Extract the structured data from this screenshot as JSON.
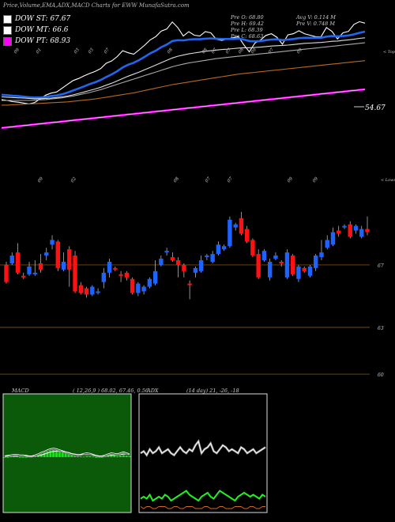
{
  "header": {
    "title": "Price,Volume,EMA,ADX,MACD Charts for EWW MunafaSutra.com"
  },
  "legend": [
    {
      "label": "DOW ST: 67.67",
      "color": "#ffffff"
    },
    {
      "label": "DOW MT: 66.6",
      "color": "#ffffff"
    },
    {
      "label": "DOW PT: 68.93",
      "color": "#ff00ff"
    }
  ],
  "quote": {
    "pre_o": "Pre  O: 68.80",
    "pre_h": "Pre  H: 69.42",
    "pre_l": "Pre  L: 68.39",
    "pre_c": "Pre  C: 68.63",
    "avg_v": "Avg V: 0.114  M",
    "pre_v": "Pre  V: 0.748 M"
  },
  "chart_data": [
    {
      "type": "line",
      "name": "ema-panel",
      "top_tag": "< Tops",
      "top_markers": [
        "09",
        "01",
        "03",
        "03",
        "07",
        "08",
        "08",
        "07",
        "07",
        "08",
        "09",
        "07",
        "09"
      ],
      "lows_tag": "< Lows",
      "low_markers": [
        "09",
        "02",
        "08",
        "07",
        "07",
        "09",
        "09"
      ],
      "last_label": "54.67",
      "series": [
        {
          "color": "#ffffff",
          "values": [
            34.9,
            34.6,
            34.2,
            34.0,
            33.7,
            33.4,
            33.9,
            35.1,
            36.4,
            37.1,
            37.5,
            38.8,
            40.1,
            41.4,
            42.1,
            43.0,
            43.8,
            44.5,
            45.5,
            47.3,
            48.1,
            49.6,
            51.6,
            50.9,
            50.4,
            51.9,
            53.5,
            55.3,
            56.4,
            58.3,
            59.0,
            61.4,
            59.5,
            56.6,
            58.1,
            56.9,
            56.6,
            58.1,
            57.7,
            55.5,
            55.1,
            55.6,
            56.0,
            56.4,
            53.6,
            51.2,
            54.2,
            55.2,
            56.8,
            57.4,
            56.2,
            53.8,
            57.0,
            57.4,
            58.4,
            57.4,
            56.9,
            56.4,
            56.3,
            59.5,
            58.2,
            55.6,
            57.7,
            58.2,
            60.6,
            61.5,
            61.0
          ]
        },
        {
          "color": "#2266ee",
          "values": [
            36.5,
            36.4,
            36.2,
            36.1,
            35.9,
            35.7,
            35.6,
            35.6,
            35.8,
            36.1,
            36.3,
            36.7,
            37.3,
            38.0,
            38.7,
            39.4,
            40.2,
            40.8,
            41.6,
            42.6,
            43.5,
            44.6,
            45.9,
            46.8,
            47.5,
            48.4,
            49.5,
            50.7,
            51.6,
            52.8,
            53.7,
            54.9,
            55.2,
            55.1,
            55.4,
            55.5,
            55.5,
            55.7,
            55.8,
            55.7,
            55.6,
            55.6,
            55.6,
            55.7,
            55.4,
            54.9,
            54.8,
            54.9,
            55.2,
            55.4,
            55.5,
            55.2,
            55.4,
            55.6,
            55.9,
            56.0,
            56.0,
            56.0,
            56.0,
            56.4,
            56.6,
            56.5,
            56.6,
            56.8,
            57.2,
            57.7,
            58.1
          ]
        },
        {
          "color": "#dddddd",
          "values": [
            35.8,
            35.7,
            35.6,
            35.5,
            35.4,
            35.3,
            35.2,
            35.2,
            35.3,
            35.4,
            35.6,
            35.8,
            36.1,
            36.5,
            37.0,
            37.5,
            38.0,
            38.5,
            39.1,
            39.8,
            40.5,
            41.3,
            42.1,
            42.9,
            43.6,
            44.3,
            45.1,
            45.9,
            46.7,
            47.5,
            48.3,
            49.1,
            49.7,
            50.1,
            50.5,
            50.8,
            51.1,
            51.4,
            51.6,
            51.8,
            52.0,
            52.1,
            52.3,
            52.5,
            52.6,
            52.6,
            52.7,
            52.8,
            53.0,
            53.2,
            53.3,
            53.4,
            53.5,
            53.7,
            53.9,
            54.1,
            54.2,
            54.3,
            54.4,
            54.6,
            54.8,
            54.9,
            55.1,
            55.3,
            55.5,
            55.8,
            56.0
          ]
        },
        {
          "color": "#aaaaaa",
          "values": [
            34.6,
            34.6,
            34.6,
            34.6,
            34.6,
            34.6,
            34.7,
            34.8,
            34.9,
            35.1,
            35.3,
            35.5,
            35.8,
            36.1,
            36.5,
            36.9,
            37.3,
            37.8,
            38.3,
            38.9,
            39.5,
            40.1,
            40.7,
            41.3,
            41.9,
            42.5,
            43.1,
            43.7,
            44.3,
            44.9,
            45.5,
            46.1,
            46.6,
            47.0,
            47.4,
            47.7,
            48.0,
            48.3,
            48.6,
            48.9,
            49.1,
            49.3,
            49.5,
            49.7,
            49.9,
            50.1,
            50.3,
            50.5,
            50.7,
            50.9,
            51.1,
            51.3,
            51.5,
            51.7,
            51.9,
            52.1,
            52.3,
            52.5,
            52.7,
            52.9,
            53.1,
            53.3,
            53.5,
            53.7,
            53.9,
            54.1,
            54.3
          ]
        },
        {
          "color": "#b86a1e",
          "values": [
            33.0,
            33.0,
            33.1,
            33.2,
            33.3,
            33.4,
            33.5,
            33.6,
            33.7,
            33.8,
            33.9,
            34.0,
            34.1,
            34.3,
            34.5,
            34.7,
            34.9,
            35.1,
            35.4,
            35.7,
            36.0,
            36.3,
            36.6,
            36.9,
            37.2,
            37.6,
            38.0,
            38.4,
            38.8,
            39.2,
            39.6,
            40.0,
            40.3,
            40.6,
            40.9,
            41.2,
            41.5,
            41.8,
            42.1,
            42.4,
            42.7,
            43.0,
            43.3,
            43.6,
            43.8,
            44.0,
            44.2,
            44.4,
            44.6,
            44.8,
            45.0,
            45.2,
            45.4,
            45.6,
            45.8,
            46.0,
            46.2,
            46.4,
            46.6,
            46.8,
            47.0,
            47.2,
            47.4,
            47.6,
            47.8,
            48.0,
            48.2
          ]
        },
        {
          "color": "#ff00ff",
          "values": [
            25.2,
            25.4,
            25.6,
            25.8,
            26.0,
            26.2,
            26.4,
            26.6,
            26.8,
            27.0,
            27.2,
            27.4,
            27.6,
            27.8,
            28.0,
            28.2,
            28.4,
            28.6,
            28.8,
            29.0,
            29.2,
            29.4,
            29.6,
            29.8,
            30.0,
            30.2,
            30.4,
            30.6,
            30.8,
            31.0,
            31.2,
            31.4,
            31.6,
            31.8,
            32.0,
            32.2,
            32.4,
            32.6,
            32.8,
            33.0,
            33.2,
            33.4,
            33.6,
            33.8,
            34.0,
            34.2,
            34.4,
            34.6,
            34.8,
            35.0,
            35.2,
            35.4,
            35.6,
            35.8,
            36.0,
            36.2,
            36.4,
            36.6,
            36.8,
            37.0,
            37.2,
            37.4,
            37.6,
            37.8,
            38.0,
            38.2,
            38.4
          ]
        }
      ]
    },
    {
      "type": "candlestick",
      "name": "price-panel",
      "ylim": [
        59.8,
        70.9
      ],
      "price_ticks": [
        {
          "value": 67,
          "label": "67"
        },
        {
          "value": 63,
          "label": "63"
        },
        {
          "value": 60,
          "label": "60"
        }
      ],
      "candles": [
        {
          "o": 67.0,
          "c": 65.9,
          "h": 67.2,
          "l": 65.8
        },
        {
          "o": 67.1,
          "c": 67.6,
          "h": 67.8,
          "l": 67.0
        },
        {
          "o": 67.8,
          "c": 66.5,
          "h": 68.4,
          "l": 66.4
        },
        {
          "o": 66.3,
          "c": 66.2,
          "h": 66.5,
          "l": 66.1
        },
        {
          "o": 66.4,
          "c": 66.9,
          "h": 67.2,
          "l": 66.3
        },
        {
          "o": 66.4,
          "c": 66.5,
          "h": 67.3,
          "l": 66.3
        },
        {
          "o": 67.1,
          "c": 66.7,
          "h": 67.7,
          "l": 66.5
        },
        {
          "o": 67.6,
          "c": 67.8,
          "h": 68.1,
          "l": 67.3
        },
        {
          "o": 68.3,
          "c": 68.6,
          "h": 68.9,
          "l": 68.0
        },
        {
          "o": 68.5,
          "c": 66.8,
          "h": 68.6,
          "l": 66.6
        },
        {
          "o": 66.7,
          "c": 67.2,
          "h": 67.8,
          "l": 66.6
        },
        {
          "o": 68.0,
          "c": 66.7,
          "h": 68.2,
          "l": 65.6
        },
        {
          "o": 67.6,
          "c": 65.3,
          "h": 67.9,
          "l": 65.2
        },
        {
          "o": 65.7,
          "c": 65.2,
          "h": 65.9,
          "l": 65.1
        },
        {
          "o": 65.5,
          "c": 65.1,
          "h": 65.6,
          "l": 64.9
        },
        {
          "o": 65.1,
          "c": 65.6,
          "h": 65.7,
          "l": 65.0
        },
        {
          "o": 65.2,
          "c": 65.3,
          "h": 65.5,
          "l": 65.1
        },
        {
          "o": 65.9,
          "c": 66.5,
          "h": 66.8,
          "l": 65.5
        },
        {
          "o": 66.5,
          "c": 67.2,
          "h": 67.4,
          "l": 66.2
        },
        {
          "o": 66.8,
          "c": 66.7,
          "h": 66.9,
          "l": 66.6
        },
        {
          "o": 66.4,
          "c": 66.3,
          "h": 66.6,
          "l": 65.9
        },
        {
          "o": 66.5,
          "c": 66.2,
          "h": 66.6,
          "l": 66.0
        },
        {
          "o": 66.1,
          "c": 65.2,
          "h": 66.2,
          "l": 65.1
        },
        {
          "o": 65.2,
          "c": 65.8,
          "h": 65.9,
          "l": 65.0
        },
        {
          "o": 65.3,
          "c": 65.6,
          "h": 65.7,
          "l": 65.1
        },
        {
          "o": 65.6,
          "c": 66.1,
          "h": 66.2,
          "l": 65.5
        },
        {
          "o": 65.8,
          "c": 66.6,
          "h": 67.3,
          "l": 65.7
        },
        {
          "o": 67.0,
          "c": 67.4,
          "h": 67.6,
          "l": 66.9
        },
        {
          "o": 67.8,
          "c": 67.9,
          "h": 68.1,
          "l": 67.6
        },
        {
          "o": 67.5,
          "c": 67.3,
          "h": 67.8,
          "l": 67.2
        },
        {
          "o": 67.3,
          "c": 67.0,
          "h": 67.5,
          "l": 66.2
        },
        {
          "o": 67.0,
          "c": 66.6,
          "h": 67.1,
          "l": 66.2
        },
        {
          "o": 65.8,
          "c": 65.7,
          "h": 66.0,
          "l": 64.8
        },
        {
          "o": 66.5,
          "c": 66.8,
          "h": 66.9,
          "l": 66.2
        },
        {
          "o": 66.6,
          "c": 67.3,
          "h": 67.6,
          "l": 66.5
        },
        {
          "o": 67.5,
          "c": 67.6,
          "h": 67.7,
          "l": 67.3
        },
        {
          "o": 67.2,
          "c": 67.7,
          "h": 67.9,
          "l": 67.1
        },
        {
          "o": 67.7,
          "c": 68.3,
          "h": 68.5,
          "l": 67.6
        },
        {
          "o": 68.0,
          "c": 68.2,
          "h": 68.3,
          "l": 67.9
        },
        {
          "o": 68.2,
          "c": 69.9,
          "h": 70.1,
          "l": 68.1
        },
        {
          "o": 69.4,
          "c": 69.6,
          "h": 69.7,
          "l": 69.2
        },
        {
          "o": 70.0,
          "c": 69.0,
          "h": 70.4,
          "l": 68.9
        },
        {
          "o": 69.3,
          "c": 68.5,
          "h": 69.5,
          "l": 68.4
        },
        {
          "o": 68.6,
          "c": 67.6,
          "h": 68.7,
          "l": 67.5
        },
        {
          "o": 67.7,
          "c": 66.2,
          "h": 68.0,
          "l": 66.1
        },
        {
          "o": 67.3,
          "c": 67.9,
          "h": 68.0,
          "l": 67.2
        },
        {
          "o": 66.2,
          "c": 67.2,
          "h": 67.4,
          "l": 66.0
        },
        {
          "o": 67.4,
          "c": 67.6,
          "h": 67.8,
          "l": 67.3
        },
        {
          "o": 67.2,
          "c": 67.1,
          "h": 67.3,
          "l": 66.9
        },
        {
          "o": 66.2,
          "c": 67.8,
          "h": 68.0,
          "l": 66.1
        },
        {
          "o": 67.6,
          "c": 66.4,
          "h": 67.7,
          "l": 66.3
        },
        {
          "o": 66.1,
          "c": 66.9,
          "h": 67.0,
          "l": 65.9
        },
        {
          "o": 66.8,
          "c": 66.6,
          "h": 66.9,
          "l": 66.5
        },
        {
          "o": 66.3,
          "c": 66.9,
          "h": 67.0,
          "l": 66.2
        },
        {
          "o": 66.8,
          "c": 67.6,
          "h": 67.7,
          "l": 66.6
        },
        {
          "o": 67.5,
          "c": 67.8,
          "h": 68.6,
          "l": 67.3
        },
        {
          "o": 68.1,
          "c": 68.6,
          "h": 68.9,
          "l": 68.0
        },
        {
          "o": 68.3,
          "c": 69.1,
          "h": 69.4,
          "l": 68.2
        },
        {
          "o": 69.2,
          "c": 69.0,
          "h": 69.5,
          "l": 68.8
        },
        {
          "o": 69.4,
          "c": 69.5,
          "h": 69.6,
          "l": 69.3
        },
        {
          "o": 69.6,
          "c": 68.8,
          "h": 69.8,
          "l": 68.7
        },
        {
          "o": 69.2,
          "c": 69.5,
          "h": 69.6,
          "l": 69.0
        },
        {
          "o": 68.8,
          "c": 69.3,
          "h": 69.5,
          "l": 68.7
        },
        {
          "o": 69.3,
          "c": 69.1,
          "h": 70.1,
          "l": 68.9
        }
      ]
    },
    {
      "type": "line",
      "name": "macd-panel",
      "label": "MACD",
      "params": "( 12,26,9 ) 68.02, 67.46, 0.56",
      "ylim": [
        -4,
        4
      ],
      "macd": [
        0.0,
        0.1,
        0.2,
        0.3,
        0.3,
        0.2,
        0.2,
        0.1,
        0.0,
        0.0,
        0.2,
        0.4,
        0.7,
        0.9,
        1.2,
        1.4,
        1.5,
        1.4,
        1.2,
        1.0,
        0.8,
        0.6,
        0.4,
        0.3,
        0.2,
        0.3,
        0.5,
        0.6,
        0.5,
        0.3,
        0.1,
        0.0,
        0.0,
        0.2,
        0.4,
        0.6,
        0.5,
        0.4,
        0.6,
        0.8,
        0.6,
        0.4
      ],
      "signal": [
        0.2,
        0.2,
        0.2,
        0.2,
        0.2,
        0.2,
        0.2,
        0.2,
        0.2,
        0.2,
        0.2,
        0.3,
        0.4,
        0.6,
        0.8,
        1.0,
        1.1,
        1.2,
        1.2,
        1.1,
        1.0,
        0.9,
        0.7,
        0.6,
        0.5,
        0.5,
        0.5,
        0.5,
        0.5,
        0.4,
        0.3,
        0.2,
        0.2,
        0.2,
        0.3,
        0.4,
        0.4,
        0.4,
        0.5,
        0.6,
        0.6,
        0.5
      ],
      "hist": [
        0.0,
        0.0,
        0.1,
        0.1,
        0.1,
        0.0,
        0.0,
        0.0,
        0.1,
        0.1,
        0.2,
        0.4,
        0.6,
        0.9,
        1.1,
        1.3,
        1.4,
        1.3,
        1.2,
        1.0,
        0.8,
        0.6,
        0.4,
        0.2,
        0.1,
        0.1,
        0.1,
        0.2,
        0.2,
        0.1,
        0.0,
        0.0,
        0.0,
        0.1,
        0.2,
        0.3,
        0.3,
        0.2,
        0.3,
        0.4,
        0.3,
        0.2
      ]
    },
    {
      "type": "line",
      "name": "adx-panel",
      "label": "ADX",
      "params": "(14 day) 21,  -26,  -18",
      "ylim": [
        0,
        60
      ],
      "di_plus": [
        30,
        31,
        29,
        32,
        30,
        31,
        33,
        30,
        31,
        32,
        30,
        29,
        31,
        33,
        31,
        30,
        32,
        31,
        34,
        36,
        30,
        32,
        33,
        35,
        31,
        30,
        32,
        34,
        33,
        31,
        32,
        31,
        30,
        33,
        32,
        30,
        31,
        32,
        30,
        31,
        32,
        33
      ],
      "di_minus": [
        7,
        8,
        7,
        9,
        6,
        7,
        8,
        7,
        9,
        8,
        6,
        7,
        8,
        9,
        10,
        11,
        9,
        8,
        7,
        6,
        8,
        9,
        10,
        8,
        7,
        9,
        11,
        10,
        9,
        8,
        7,
        6,
        8,
        9,
        10,
        9,
        8,
        9,
        8,
        7,
        9,
        8
      ],
      "adx": [
        3,
        2,
        3,
        3,
        2,
        2,
        3,
        3,
        3,
        2,
        2,
        3,
        3,
        2,
        2,
        3,
        3,
        3,
        2,
        2,
        2,
        3,
        3,
        2,
        2,
        2,
        3,
        3,
        2,
        2,
        2,
        3,
        3,
        3,
        2,
        2,
        3,
        3,
        2,
        2,
        3,
        3
      ]
    }
  ]
}
